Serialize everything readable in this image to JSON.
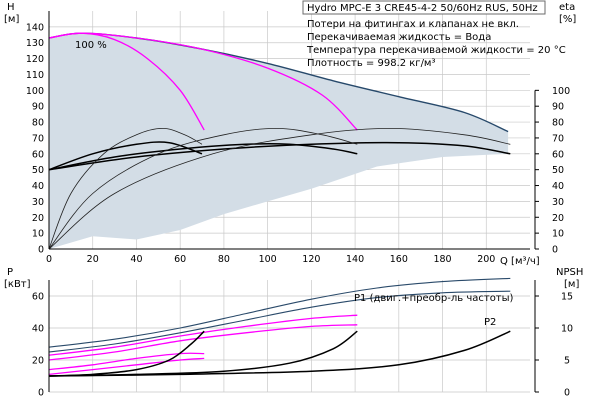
{
  "legend": {
    "title": "Hydro MPC-E 3 CRE45-4-2 50/60Hz RUS, 50Hz",
    "lines": [
      "Потери на фитингах и клапанах не вкл.",
      "Перекачиваемая жидкость = Вода",
      "Температура перекачиваемой жидкости = 20 °C",
      "Плотность = 998.2 кг/м³"
    ]
  },
  "colors": {
    "area": "#d3dde6",
    "area_edge": "#27496b",
    "speed_curve": "#ff00ff",
    "pump_curve": "#000000",
    "efficiency_curve": "#222222",
    "power_curve": "#2a4a6a",
    "grid": "#c9c9c9"
  },
  "chart_data": [
    {
      "type": "line",
      "panel": "head",
      "ylabel_left": [
        "H",
        "[м]"
      ],
      "ylabel_right": [
        "eta",
        "[%]"
      ],
      "xlabel": "Q [м³/ч]",
      "xlim": [
        0,
        220
      ],
      "ylim": [
        0,
        150
      ],
      "xticks": [
        "0",
        "20",
        "40",
        "60",
        "80",
        "100",
        "120",
        "140",
        "160",
        "180",
        "200"
      ],
      "yticks_left": [
        "0",
        "10",
        "20",
        "30",
        "40",
        "50",
        "60",
        "70",
        "80",
        "90",
        "100",
        "110",
        "120",
        "130",
        "140"
      ],
      "yticks_right": [
        "0",
        "10",
        "20",
        "30",
        "40",
        "50",
        "60",
        "70",
        "80",
        "90",
        "100"
      ],
      "annotation": "100 %",
      "operating_area": [
        [
          0,
          133
        ],
        [
          15,
          136
        ],
        [
          40,
          133
        ],
        [
          70,
          126
        ],
        [
          100,
          117
        ],
        [
          130,
          106
        ],
        [
          160,
          96
        ],
        [
          190,
          86
        ],
        [
          210,
          74
        ],
        [
          210,
          60
        ],
        [
          180,
          58
        ],
        [
          150,
          52
        ],
        [
          120,
          38
        ],
        [
          100,
          30
        ],
        [
          80,
          22
        ],
        [
          60,
          12
        ],
        [
          40,
          6
        ],
        [
          20,
          8
        ],
        [
          0,
          0
        ]
      ],
      "series": [
        {
          "style": "speed_curve",
          "points": [
            [
              0,
              133
            ],
            [
              15,
              136
            ],
            [
              30,
              132
            ],
            [
              45,
              120
            ],
            [
              60,
              100
            ],
            [
              71,
              75
            ]
          ]
        },
        {
          "style": "speed_curve",
          "points": [
            [
              0,
              133
            ],
            [
              15,
              136
            ],
            [
              40,
              133
            ],
            [
              70,
              126
            ],
            [
              100,
              114
            ],
            [
              125,
              97
            ],
            [
              141,
              75
            ]
          ]
        },
        {
          "style": "pump_curve",
          "points": [
            [
              0,
              50
            ],
            [
              20,
              60
            ],
            [
              40,
              66
            ],
            [
              55,
              67
            ],
            [
              70,
              60
            ]
          ]
        },
        {
          "style": "pump_curve",
          "points": [
            [
              0,
              50
            ],
            [
              30,
              58
            ],
            [
              60,
              63
            ],
            [
              90,
              66
            ],
            [
              110,
              66
            ],
            [
              130,
              63
            ],
            [
              141,
              60
            ]
          ]
        },
        {
          "style": "pump_curve",
          "points": [
            [
              0,
              50
            ],
            [
              40,
              58
            ],
            [
              80,
              63
            ],
            [
              120,
              66
            ],
            [
              160,
              67
            ],
            [
              190,
              65
            ],
            [
              211,
              60
            ]
          ]
        },
        {
          "style": "efficiency_curve",
          "points": [
            [
              0,
              0
            ],
            [
              10,
              35
            ],
            [
              25,
              60
            ],
            [
              40,
              72
            ],
            [
              52,
              76
            ],
            [
              62,
              72
            ],
            [
              70,
              66
            ]
          ]
        },
        {
          "style": "efficiency_curve",
          "points": [
            [
              0,
              0
            ],
            [
              20,
              35
            ],
            [
              50,
              60
            ],
            [
              80,
              72
            ],
            [
              104,
              76
            ],
            [
              125,
              72
            ],
            [
              141,
              66
            ]
          ]
        },
        {
          "style": "efficiency_curve",
          "points": [
            [
              0,
              0
            ],
            [
              30,
              35
            ],
            [
              75,
              60
            ],
            [
              120,
              72
            ],
            [
              156,
              76
            ],
            [
              190,
              72
            ],
            [
              211,
              66
            ]
          ]
        }
      ]
    },
    {
      "type": "line",
      "panel": "power",
      "ylabel_left": [
        "P",
        "[кВт]"
      ],
      "ylabel_right": [
        "NPSH",
        "[м]"
      ],
      "xlim": [
        0,
        220
      ],
      "ylim": [
        0,
        70
      ],
      "yticks_left": [
        "0",
        "20",
        "40",
        "60"
      ],
      "yticks_right": [
        "0",
        "5",
        "10",
        "15"
      ],
      "series": [
        {
          "name": "P1 (двиг.+преобр-ль частоты)",
          "style": "power_curve",
          "points": [
            [
              0,
              28
            ],
            [
              30,
              33
            ],
            [
              60,
              40
            ],
            [
              90,
              49
            ],
            [
              120,
              58
            ],
            [
              150,
              65
            ],
            [
              180,
              69
            ],
            [
              211,
              71
            ]
          ]
        },
        {
          "name": "P2",
          "style": "power_curve",
          "points": [
            [
              0,
              25
            ],
            [
              30,
              30
            ],
            [
              60,
              37
            ],
            [
              90,
              45
            ],
            [
              120,
              53
            ],
            [
              150,
              59
            ],
            [
              180,
              62
            ],
            [
              211,
              63
            ]
          ]
        },
        {
          "style": "speed_curve",
          "points": [
            [
              0,
              23
            ],
            [
              30,
              28
            ],
            [
              60,
              35
            ],
            [
              90,
              41
            ],
            [
              120,
              46
            ],
            [
              141,
              48
            ]
          ]
        },
        {
          "style": "speed_curve",
          "points": [
            [
              0,
              20
            ],
            [
              30,
              25
            ],
            [
              60,
              32
            ],
            [
              90,
              37
            ],
            [
              120,
              41
            ],
            [
              141,
              42
            ]
          ]
        },
        {
          "style": "speed_curve",
          "points": [
            [
              0,
              14
            ],
            [
              20,
              17
            ],
            [
              40,
              21
            ],
            [
              60,
              24
            ],
            [
              71,
              24
            ]
          ]
        },
        {
          "style": "speed_curve",
          "points": [
            [
              0,
              11
            ],
            [
              20,
              14
            ],
            [
              40,
              17
            ],
            [
              60,
              20
            ],
            [
              71,
              21
            ]
          ]
        },
        {
          "style": "pump_curve",
          "points": [
            [
              0,
              10
            ],
            [
              20,
              11
            ],
            [
              40,
              14
            ],
            [
              55,
              20
            ],
            [
              65,
              30
            ],
            [
              71,
              38
            ]
          ]
        },
        {
          "style": "pump_curve",
          "points": [
            [
              0,
              10
            ],
            [
              40,
              11
            ],
            [
              80,
              13
            ],
            [
              110,
              18
            ],
            [
              130,
              27
            ],
            [
              141,
              38
            ]
          ]
        },
        {
          "style": "pump_curve",
          "points": [
            [
              0,
              10
            ],
            [
              60,
              11
            ],
            [
              120,
              13
            ],
            [
              160,
              17
            ],
            [
              190,
              26
            ],
            [
              211,
              38
            ]
          ]
        }
      ]
    }
  ]
}
